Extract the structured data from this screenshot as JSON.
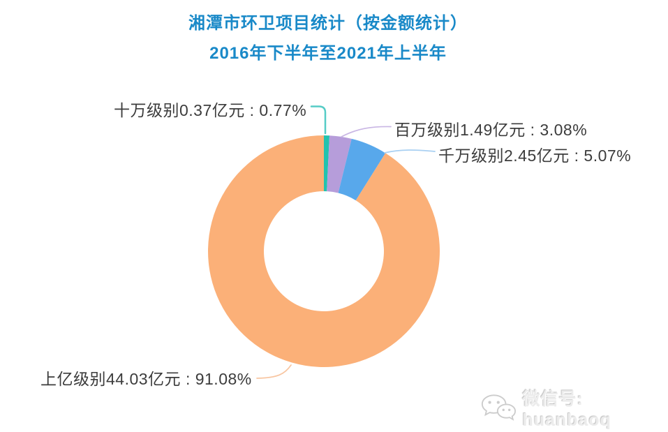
{
  "chart_data": {
    "type": "pie",
    "donut": true,
    "title": "湘潭市环卫项目统计（按金额统计）",
    "subtitle": "2016年下半年至2021年上半年",
    "title_color": "#1989c8",
    "label_color": "#3c3c3c",
    "start_angle": "12-o-clock",
    "direction": "clockwise",
    "unit": "亿元",
    "slices": [
      {
        "id": "shiwan",
        "name": "十万级别",
        "amount_yi": 0.37,
        "percent": 0.77,
        "label": "十万级别0.37亿元 : 0.77%",
        "color": "#22c3ae",
        "leader_color": "#56ccc6"
      },
      {
        "id": "baiwan",
        "name": "百万级别",
        "amount_yi": 1.49,
        "percent": 3.08,
        "label": "百万级别1.49亿元 : 3.08%",
        "color": "#b69dda",
        "leader_color": "#c9b6e4"
      },
      {
        "id": "qianwan",
        "name": "千万级别",
        "amount_yi": 2.45,
        "percent": 5.07,
        "label": "千万级别2.45亿元 : 5.07%",
        "color": "#58a8eb",
        "leader_color": "#a9d0f2"
      },
      {
        "id": "shangyi",
        "name": "上亿级别",
        "amount_yi": 44.03,
        "percent": 91.08,
        "label": "上亿级别44.03亿元 : 91.08%",
        "color": "#fbb078",
        "leader_color": "#f8c5a0"
      }
    ]
  },
  "watermark": {
    "icon": "wechat-icon",
    "text": "微信号: huanbaoq"
  }
}
